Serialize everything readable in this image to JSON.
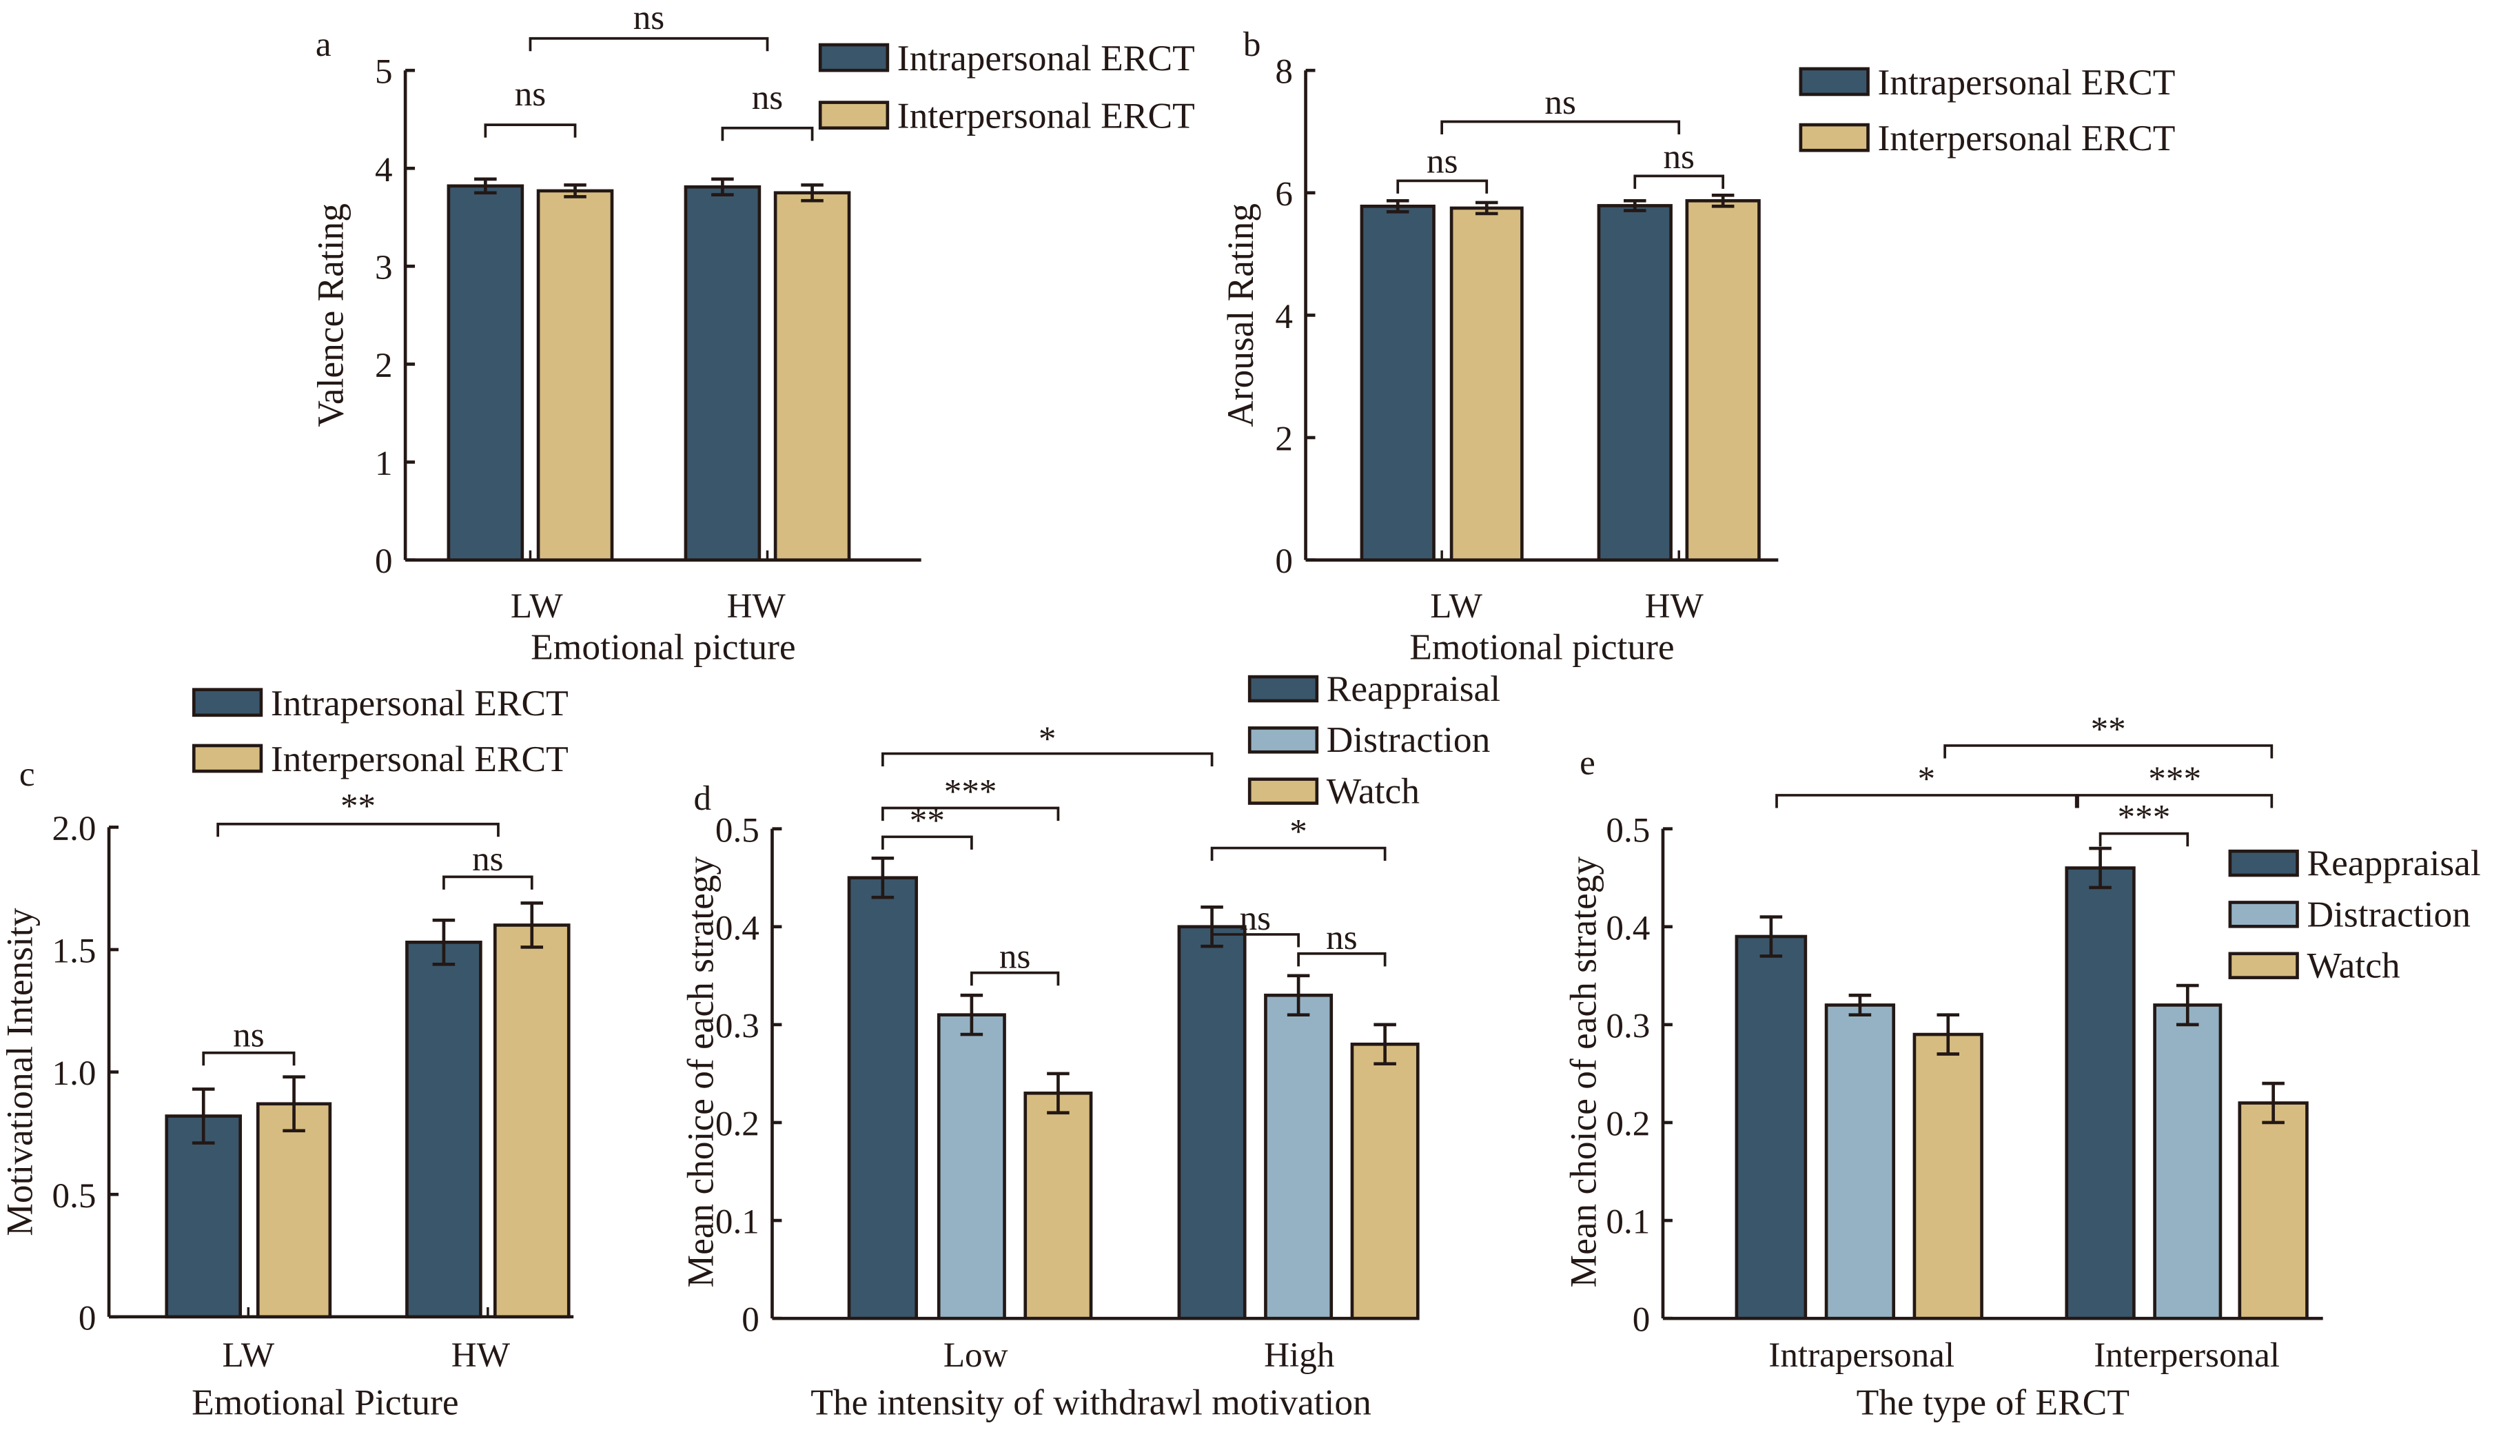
{
  "colors": {
    "intrapersonal": "#3a566b",
    "interpersonal": "#d6bc80",
    "reappraisal": "#3a566b",
    "distraction": "#94b2c4",
    "watch": "#d6bc80",
    "outline": "#231815"
  },
  "chart_data": [
    {
      "id": "a",
      "type": "bar",
      "panel_label": "a",
      "title": "",
      "xlabel": "Emotional picture",
      "ylabel": "Valence Rating",
      "ylim": [
        0,
        5
      ],
      "yticks": [
        "0",
        "1",
        "2",
        "3",
        "4",
        "5"
      ],
      "ytick_values": [
        0,
        1,
        2,
        3,
        4,
        5
      ],
      "categories": [
        "LW",
        "HW"
      ],
      "series": [
        {
          "name": "Intrapersonal ERCT",
          "color_key": "intrapersonal",
          "values": [
            3.82,
            3.81
          ],
          "errors": [
            0.07,
            0.08
          ]
        },
        {
          "name": "Interpersonal ERCT",
          "color_key": "interpersonal",
          "values": [
            3.77,
            3.75
          ],
          "errors": [
            0.06,
            0.08
          ]
        }
      ],
      "legend": {
        "entries": [
          "Intrapersonal ERCT",
          "Interpersonal ERCT"
        ],
        "placement": "top-right"
      },
      "significance": [
        {
          "label": "ns",
          "from": "LW-Intrapersonal ERCT",
          "to": "LW-Interpersonal ERCT"
        },
        {
          "label": "ns",
          "from": "HW-Intrapersonal ERCT",
          "to": "HW-Interpersonal ERCT"
        },
        {
          "label": "ns",
          "from": "LW",
          "to": "HW"
        }
      ],
      "grid": false
    },
    {
      "id": "b",
      "type": "bar",
      "panel_label": "b",
      "title": "",
      "xlabel": "Emotional picture",
      "ylabel": "Arousal Rating",
      "ylim": [
        0,
        8
      ],
      "yticks": [
        "0",
        "2",
        "4",
        "6",
        "8"
      ],
      "ytick_values": [
        0,
        2,
        4,
        6,
        8
      ],
      "categories": [
        "LW",
        "HW"
      ],
      "series": [
        {
          "name": "Intrapersonal ERCT",
          "color_key": "intrapersonal",
          "values": [
            5.78,
            5.79
          ],
          "errors": [
            0.09,
            0.08
          ]
        },
        {
          "name": "Interpersonal ERCT",
          "color_key": "interpersonal",
          "values": [
            5.75,
            5.87
          ],
          "errors": [
            0.09,
            0.09
          ]
        }
      ],
      "legend": {
        "entries": [
          "Intrapersonal ERCT",
          "Interpersonal ERCT"
        ],
        "placement": "top-right"
      },
      "significance": [
        {
          "label": "ns",
          "from": "LW-Intrapersonal ERCT",
          "to": "LW-Interpersonal ERCT"
        },
        {
          "label": "ns",
          "from": "HW-Intrapersonal ERCT",
          "to": "HW-Interpersonal ERCT"
        },
        {
          "label": "ns",
          "from": "LW",
          "to": "HW"
        }
      ],
      "grid": false
    },
    {
      "id": "c",
      "type": "bar",
      "panel_label": "c",
      "title": "",
      "xlabel": "Emotional Picture",
      "ylabel": "Motivational Intensity",
      "ylim": [
        0,
        2.0
      ],
      "yticks": [
        "0",
        "0.5",
        "1.0",
        "1.5",
        "2.0"
      ],
      "ytick_values": [
        0,
        0.5,
        1.0,
        1.5,
        2.0
      ],
      "categories": [
        "LW",
        "HW"
      ],
      "series": [
        {
          "name": "Intrapersonal ERCT",
          "color_key": "intrapersonal",
          "values": [
            0.82,
            1.53
          ],
          "errors": [
            0.11,
            0.09
          ]
        },
        {
          "name": "Interpersonal ERCT",
          "color_key": "interpersonal",
          "values": [
            0.87,
            1.6
          ],
          "errors": [
            0.11,
            0.09
          ]
        }
      ],
      "legend": {
        "entries": [
          "Intrapersonal ERCT",
          "Interpersonal ERCT"
        ],
        "placement": "top"
      },
      "significance": [
        {
          "label": "ns",
          "from": "LW-Intrapersonal ERCT",
          "to": "LW-Interpersonal ERCT"
        },
        {
          "label": "ns",
          "from": "HW-Intrapersonal ERCT",
          "to": "HW-Interpersonal ERCT"
        },
        {
          "label": "**",
          "from": "LW",
          "to": "HW"
        }
      ],
      "grid": false
    },
    {
      "id": "d",
      "type": "bar",
      "panel_label": "d",
      "title": "",
      "xlabel": "The intensity of withdrawl motivation",
      "ylabel": "Mean choice of each strategy",
      "ylim": [
        0,
        0.5
      ],
      "yticks": [
        "0",
        "0.1",
        "0.2",
        "0.3",
        "0.4",
        "0.5"
      ],
      "ytick_values": [
        0,
        0.1,
        0.2,
        0.3,
        0.4,
        0.5
      ],
      "categories": [
        "Low",
        "High"
      ],
      "series": [
        {
          "name": "Reappraisal",
          "color_key": "reappraisal",
          "values": [
            0.45,
            0.4
          ],
          "errors": [
            0.02,
            0.02
          ]
        },
        {
          "name": "Distraction",
          "color_key": "distraction",
          "values": [
            0.31,
            0.33
          ],
          "errors": [
            0.02,
            0.02
          ]
        },
        {
          "name": "Watch",
          "color_key": "watch",
          "values": [
            0.23,
            0.28
          ],
          "errors": [
            0.02,
            0.02
          ]
        }
      ],
      "legend": {
        "entries": [
          "Reappraisal",
          "Distraction",
          "Watch"
        ],
        "placement": "top-right"
      },
      "significance": [
        {
          "label": "**",
          "from": "Low-Reappraisal",
          "to": "Low-Distraction"
        },
        {
          "label": "***",
          "from": "Low-Reappraisal",
          "to": "Low-Watch"
        },
        {
          "label": "ns",
          "from": "Low-Distraction",
          "to": "Low-Watch"
        },
        {
          "label": "*",
          "from": "Low-Reappraisal",
          "to": "High-Reappraisal"
        },
        {
          "label": "ns",
          "from": "High-Reappraisal",
          "to": "High-Distraction"
        },
        {
          "label": "*",
          "from": "High-Reappraisal",
          "to": "High-Watch"
        },
        {
          "label": "ns",
          "from": "High-Distraction",
          "to": "High-Watch"
        }
      ],
      "grid": false
    },
    {
      "id": "e",
      "type": "bar",
      "panel_label": "e",
      "title": "",
      "xlabel": "The type of ERCT",
      "ylabel": "Mean choice of each strategy",
      "ylim": [
        0,
        0.5
      ],
      "yticks": [
        "0",
        "0.1",
        "0.2",
        "0.3",
        "0.4",
        "0.5"
      ],
      "ytick_values": [
        0,
        0.1,
        0.2,
        0.3,
        0.4,
        0.5
      ],
      "categories": [
        "Intrapersonal",
        "Interpersonal"
      ],
      "series": [
        {
          "name": "Reappraisal",
          "color_key": "reappraisal",
          "values": [
            0.39,
            0.46
          ],
          "errors": [
            0.02,
            0.02
          ]
        },
        {
          "name": "Distraction",
          "color_key": "distraction",
          "values": [
            0.32,
            0.32
          ],
          "errors": [
            0.01,
            0.02
          ]
        },
        {
          "name": "Watch",
          "color_key": "watch",
          "values": [
            0.29,
            0.22
          ],
          "errors": [
            0.02,
            0.02
          ]
        }
      ],
      "legend": {
        "entries": [
          "Reappraisal",
          "Distraction",
          "Watch"
        ],
        "placement": "right"
      },
      "significance": [
        {
          "label": "*",
          "from": "Intrapersonal-Reappraisal",
          "to": "Interpersonal-Reappraisal"
        },
        {
          "label": "***",
          "from": "Interpersonal-Reappraisal",
          "to": "Interpersonal-Distraction"
        },
        {
          "label": "***",
          "from": "Interpersonal-Reappraisal",
          "to": "Interpersonal-Watch"
        },
        {
          "label": "**",
          "from": "Intrapersonal-Watch",
          "to": "Interpersonal-Watch"
        }
      ],
      "grid": false
    }
  ]
}
